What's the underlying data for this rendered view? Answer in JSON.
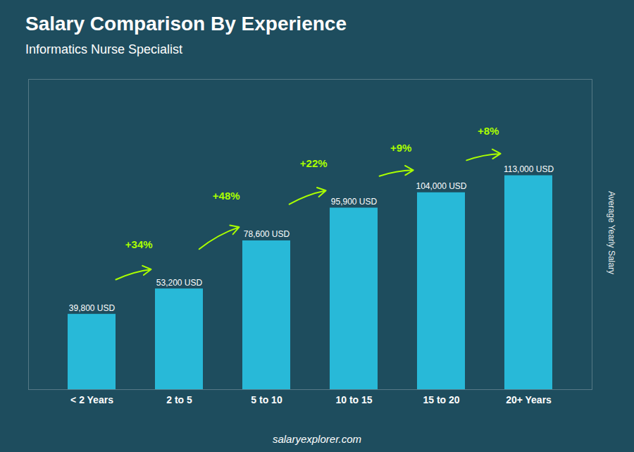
{
  "chart_data": {
    "type": "bar",
    "title": "Salary Comparison By Experience",
    "subtitle": "Informatics Nurse Specialist",
    "categories": [
      "< 2 Years",
      "2 to 5",
      "5 to 10",
      "10 to 15",
      "15 to 20",
      "20+ Years"
    ],
    "values": [
      39800,
      53200,
      78600,
      95900,
      104000,
      113000
    ],
    "value_labels": [
      "39,800 USD",
      "53,200 USD",
      "78,600 USD",
      "95,900 USD",
      "104,000 USD",
      "113,000 USD"
    ],
    "data_labels": true,
    "annotations": [
      "+34%",
      "+48%",
      "+22%",
      "+9%",
      "+8%"
    ],
    "color": "#29c5e6",
    "ylabel": "Average Yearly Salary",
    "ylim": [
      0,
      163850
    ],
    "tick_labels": "x",
    "grid": false,
    "caption": "salaryexplorer.com"
  }
}
